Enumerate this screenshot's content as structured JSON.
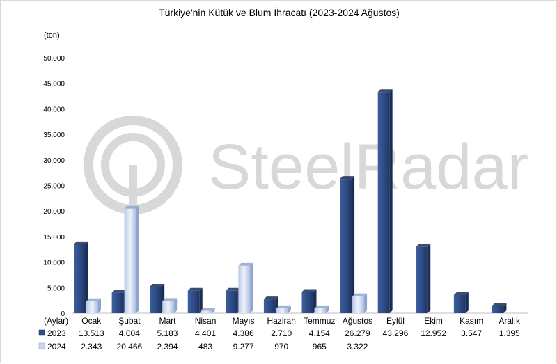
{
  "chart_data": {
    "type": "bar",
    "title": "Türkiye'nin Kütük ve Blum İhracatı (2023-2024 Ağustos)",
    "ylabel": "(ton)",
    "xlabel": "(Aylar)",
    "ylim": [
      0,
      50000
    ],
    "y_ticks": [
      "0",
      "5.000",
      "10.000",
      "15.000",
      "20.000",
      "25.000",
      "30.000",
      "35.000",
      "40.000",
      "45.000",
      "50.000"
    ],
    "grid": false,
    "legend": "bottom-left data table",
    "categories": [
      "Ocak",
      "Şubat",
      "Mart",
      "Nisan",
      "Mayıs",
      "Haziran",
      "Temmuz",
      "Ağustos",
      "Eylül",
      "Ekim",
      "Kasım",
      "Aralık"
    ],
    "series": [
      {
        "name": "2023",
        "color": "#2f4f8a",
        "values": [
          13513,
          4004,
          5183,
          4401,
          4386,
          2710,
          4154,
          26279,
          43296,
          12952,
          3547,
          1395
        ],
        "labels": [
          "13.513",
          "4.004",
          "5.183",
          "4.401",
          "4.386",
          "2.710",
          "4.154",
          "26.279",
          "43.296",
          "12.952",
          "3.547",
          "1.395"
        ]
      },
      {
        "name": "2024",
        "color": "#c9d6f0",
        "values": [
          2343,
          20466,
          2394,
          483,
          9277,
          970,
          965,
          3322,
          null,
          null,
          null,
          null
        ],
        "labels": [
          "2.343",
          "20.466",
          "2.394",
          "483",
          "9.277",
          "970",
          "965",
          "3.322",
          "",
          "",
          "",
          ""
        ]
      }
    ]
  },
  "watermark": {
    "brand": "SteelRadar",
    "icon": "steelradar-logo-icon"
  }
}
